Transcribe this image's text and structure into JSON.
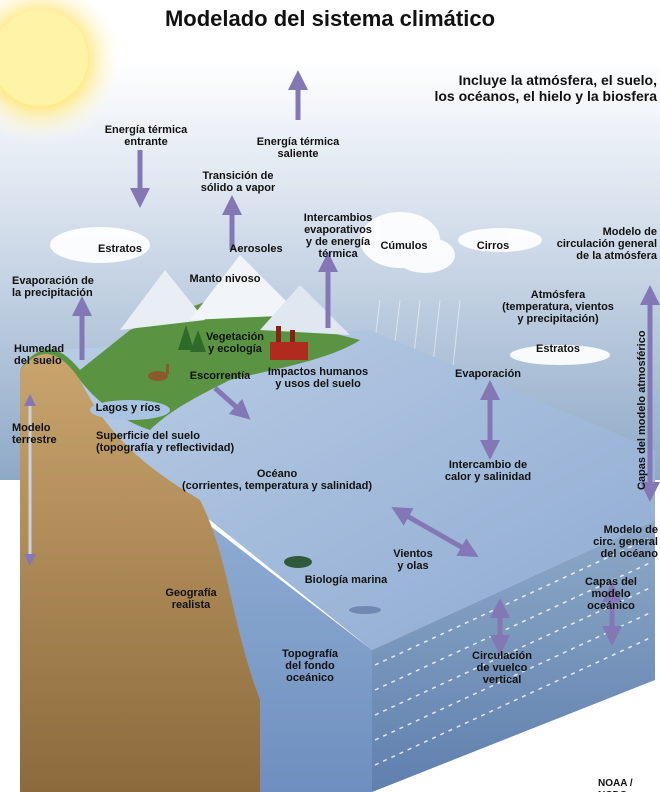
{
  "title": "Modelado del sistema climático",
  "subtitle": "Incluye la atmósfera, el suelo,\nlos océanos, el hielo y la biosfera",
  "credit": "NOAA / NCDC",
  "colors": {
    "sky_top": "#8ea9c7",
    "ocean": "#9db8d8",
    "ocean_deep": "#7f9fc9",
    "land_brown": "#b48e5a",
    "land_green": "#4f8a3a",
    "arrow": "#8378b5",
    "sun": "#fff2a0"
  },
  "labels": {
    "incoming_energy": "Energía térmica\nentrante",
    "outgoing_energy": "Energía térmica\nsaliente",
    "solid_to_vapor": "Transición de\nsólido a vapor",
    "exchanges": "Intercambios\nevaporativos\ny de energía\ntérmica",
    "strata_left": "Estratos",
    "aerosols": "Aerosoles",
    "cumulus": "Cúmulos",
    "cirrus": "Cirros",
    "atm_gcm": "Modelo de\ncirculación general\nde la atmósfera",
    "precip_evap": "Evaporación de\nla precipitación",
    "snowpack": "Manto nivoso",
    "atmosphere": "Atmósfera\n(temperatura, vientos\ny precipitación)",
    "soil_moisture": "Humedad\ndel suelo",
    "vegetation": "Vegetación\ny ecología",
    "strata_right": "Estratos",
    "runoff": "Escorrentía",
    "human_impacts": "Impactos humanos\ny usos del suelo",
    "evaporation": "Evaporación",
    "lakes_rivers": "Lagos y ríos",
    "land_model": "Modelo\nterrestre",
    "land_surface": "Superficie del suelo\n(topografía y reflectividad)",
    "heat_salt_exchange": "Intercambio de\ncalor y salinidad",
    "ocean": "Océano\n(corrientes, temperatura y salinidad)",
    "atm_model_layers": "Capas del modelo atmosférico",
    "ocean_gcm": "Modelo de\ncirc. general\ndel océano",
    "winds_waves": "Vientos\ny olas",
    "marine_biology": "Biología marina",
    "realistic_geography": "Geografía\nrealista",
    "ocean_model_layers": "Capas del\nmodelo\noceánico",
    "bottom_topography": "Topografía\ndel fondo\noceánico",
    "overturning": "Circulación\nde vuelco\nvertical"
  }
}
